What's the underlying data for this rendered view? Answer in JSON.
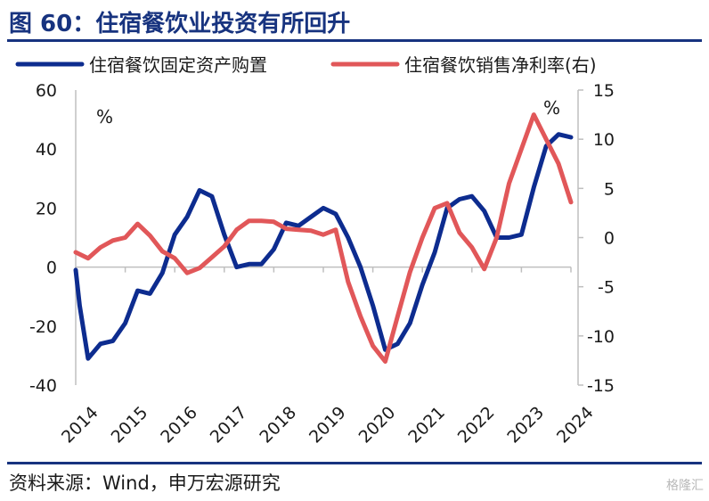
{
  "header": {
    "title": "图 60：住宿餐饮业投资有所回升"
  },
  "footer": {
    "source": "资料来源：Wind，申万宏源研究",
    "watermark": "格隆汇"
  },
  "chart_data": {
    "type": "line",
    "title": "图 60：住宿餐饮业投资有所回升",
    "x_ticks": [
      "2014",
      "2015",
      "2016",
      "2017",
      "2018",
      "2019",
      "2020",
      "2021",
      "2022",
      "2023",
      "2024"
    ],
    "y_left": {
      "range": [
        -40,
        60
      ],
      "ticks": [
        -40,
        -20,
        0,
        20,
        40,
        60
      ],
      "unit": "%"
    },
    "y_right": {
      "range": [
        -15,
        15
      ],
      "ticks": [
        -15,
        -10,
        -5,
        0,
        5,
        10,
        15
      ],
      "unit": "%"
    },
    "grid": false,
    "legend_position": "top",
    "series": [
      {
        "name": "住宿餐饮固定资产购置",
        "axis": "left",
        "color": "#0d2c8f",
        "x": [
          2014.0,
          2014.08,
          2014.25,
          2014.5,
          2014.75,
          2015.0,
          2015.25,
          2015.5,
          2015.75,
          2016.0,
          2016.25,
          2016.5,
          2016.75,
          2017.0,
          2017.25,
          2017.5,
          2017.75,
          2018.0,
          2018.25,
          2018.5,
          2018.75,
          2019.0,
          2019.25,
          2019.5,
          2019.75,
          2020.0,
          2020.25,
          2020.5,
          2020.75,
          2021.0,
          2021.25,
          2021.5,
          2021.75,
          2022.0,
          2022.25,
          2022.5,
          2022.75,
          2023.0,
          2023.25,
          2023.5,
          2023.75,
          2024.0
        ],
        "y": [
          -1,
          -13,
          -31,
          -26,
          -25,
          -19,
          -8,
          -9,
          -2,
          11,
          17,
          26,
          24,
          11,
          0,
          1,
          1,
          6,
          15,
          14,
          17,
          20,
          18,
          10,
          0,
          -13,
          -28,
          -26,
          -19,
          -6,
          5,
          20,
          23,
          24,
          19,
          10,
          10,
          11,
          27,
          41,
          45,
          44
        ]
      },
      {
        "name": "住宿餐饮销售净利率(右)",
        "axis": "right",
        "color": "#e15759",
        "x": [
          2014.0,
          2014.25,
          2014.5,
          2014.75,
          2015.0,
          2015.25,
          2015.5,
          2015.75,
          2016.0,
          2016.25,
          2016.5,
          2016.75,
          2017.0,
          2017.25,
          2017.5,
          2017.75,
          2018.0,
          2018.25,
          2018.5,
          2018.75,
          2019.0,
          2019.25,
          2019.5,
          2019.75,
          2020.0,
          2020.25,
          2020.5,
          2020.75,
          2021.0,
          2021.25,
          2021.5,
          2021.75,
          2022.0,
          2022.25,
          2022.5,
          2022.75,
          2023.0,
          2023.25,
          2023.5,
          2023.75,
          2024.0
        ],
        "y": [
          -1.5,
          -2.1,
          -1.0,
          -0.3,
          0.0,
          1.4,
          0.2,
          -1.4,
          -2.1,
          -3.6,
          -3.1,
          -2.0,
          -0.9,
          0.8,
          1.7,
          1.7,
          1.6,
          0.9,
          0.8,
          0.7,
          0.3,
          0.8,
          -4.5,
          -8.0,
          -11.0,
          -12.6,
          -8.0,
          -3.5,
          0.0,
          3.0,
          3.5,
          0.5,
          -1.0,
          -3.2,
          0.0,
          5.5,
          9.0,
          12.5,
          10.0,
          7.5,
          3.6
        ]
      }
    ]
  }
}
